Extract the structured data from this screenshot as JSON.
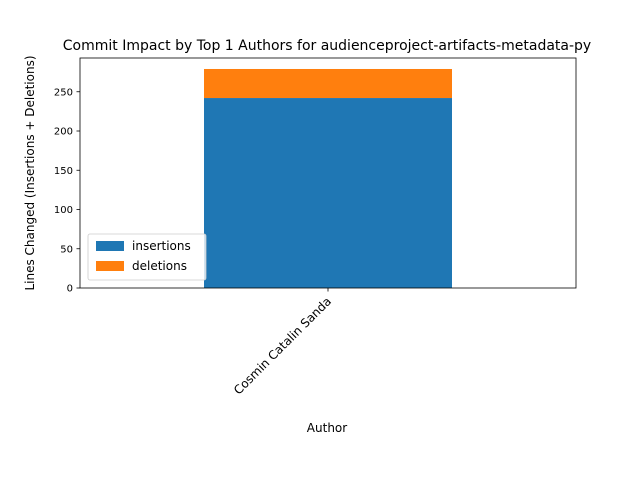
{
  "chart_data": {
    "type": "bar",
    "stacked": true,
    "title": "Commit Impact by Top 1 Authors for audienceproject-artifacts-metadata-py",
    "xlabel": "Author",
    "ylabel": "Lines Changed (Insertions + Deletions)",
    "categories": [
      "Cosmin Catalin Sanda"
    ],
    "series": [
      {
        "name": "insertions",
        "values": [
          242
        ],
        "color": "#1f77b4"
      },
      {
        "name": "deletions",
        "values": [
          37
        ],
        "color": "#ff7f0e"
      }
    ],
    "ylim": [
      0,
      293
    ],
    "yticks": [
      0,
      50,
      100,
      150,
      200,
      250
    ],
    "legend_position": "lower-left",
    "grid": false
  }
}
